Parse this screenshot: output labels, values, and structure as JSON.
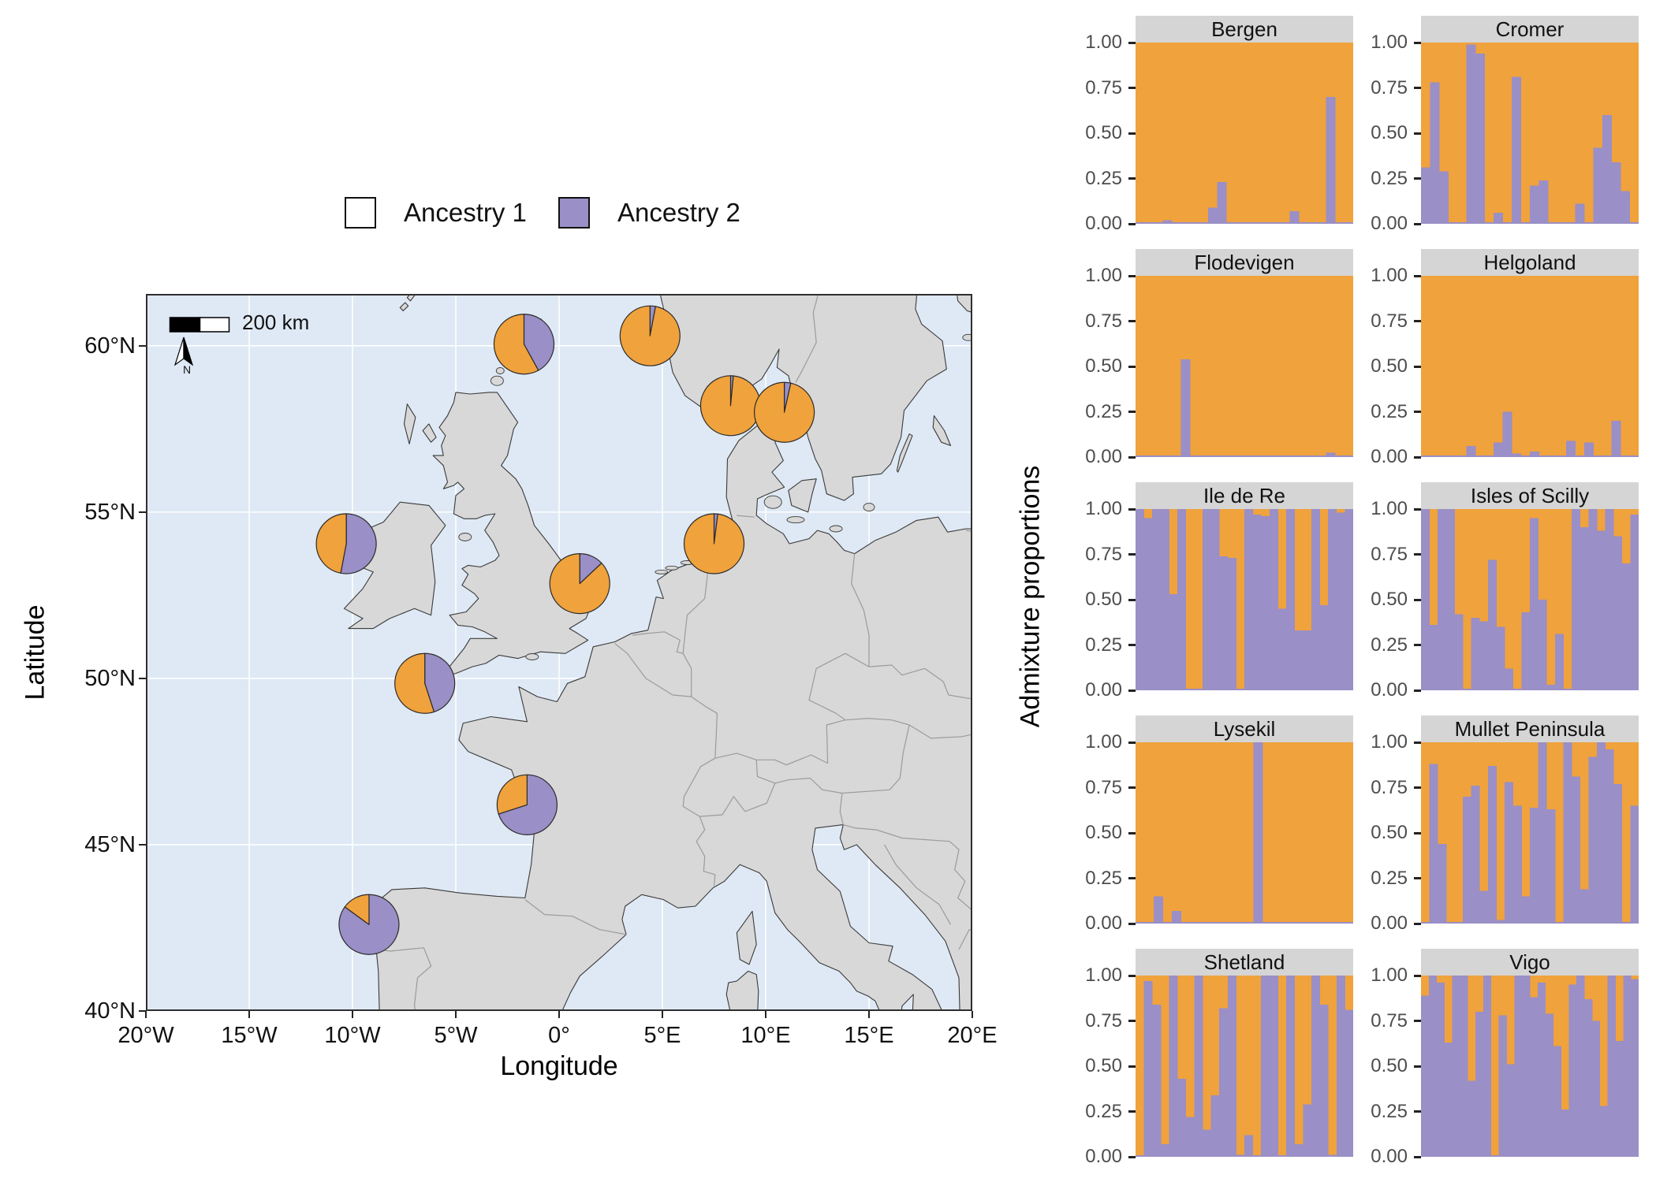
{
  "legend": {
    "items": [
      {
        "label": "Ancestry 1",
        "color": "#F0A23C"
      },
      {
        "label": "Ancestry 2",
        "color": "#9A8FC6"
      }
    ]
  },
  "map": {
    "xlabel": "Longitude",
    "ylabel": "Latitude",
    "scalebar_label": "200 km",
    "north_label": "N",
    "xticks": [
      {
        "label": "20°W",
        "lon": -20
      },
      {
        "label": "15°W",
        "lon": -15
      },
      {
        "label": "10°W",
        "lon": -10
      },
      {
        "label": "5°W",
        "lon": -5
      },
      {
        "label": "0°",
        "lon": 0
      },
      {
        "label": "5°E",
        "lon": 5
      },
      {
        "label": "10°E",
        "lon": 10
      },
      {
        "label": "15°E",
        "lon": 15
      },
      {
        "label": "20°E",
        "lon": 20
      }
    ],
    "yticks": [
      {
        "label": "40°N",
        "lat": 40
      },
      {
        "label": "45°N",
        "lat": 45
      },
      {
        "label": "50°N",
        "lat": 50
      },
      {
        "label": "55°N",
        "lat": 55
      },
      {
        "label": "60°N",
        "lat": 60
      }
    ],
    "colors": {
      "ocean": "#DEE9F5",
      "land": "#D8D8D8",
      "coast": "#3A3A3A",
      "country_border": "#9B9B9B",
      "grid": "#FFFFFF"
    }
  },
  "chart_data": [
    {
      "type": "pie",
      "title": "Admixture proportion pies by sampling site",
      "colors": {
        "ancestry1": "#F0A23C",
        "ancestry2": "#9A8FC6"
      },
      "sites": [
        {
          "name": "Shetland",
          "lon": -1.7,
          "lat": 60.05,
          "ancestry1": 0.58,
          "ancestry2": 0.42
        },
        {
          "name": "Bergen",
          "lon": 4.4,
          "lat": 60.3,
          "ancestry1": 0.97,
          "ancestry2": 0.03
        },
        {
          "name": "Flodevigen",
          "lon": 8.3,
          "lat": 58.2,
          "ancestry1": 0.985,
          "ancestry2": 0.015
        },
        {
          "name": "Lysekil",
          "lon": 10.9,
          "lat": 58.0,
          "ancestry1": 0.965,
          "ancestry2": 0.035
        },
        {
          "name": "Mullet Peninsula",
          "lon": -10.3,
          "lat": 54.05,
          "ancestry1": 0.47,
          "ancestry2": 0.53
        },
        {
          "name": "Helgoland",
          "lon": 7.5,
          "lat": 54.05,
          "ancestry1": 0.98,
          "ancestry2": 0.02
        },
        {
          "name": "Cromer",
          "lon": 1.0,
          "lat": 52.85,
          "ancestry1": 0.87,
          "ancestry2": 0.13
        },
        {
          "name": "Isles of Scilly",
          "lon": -6.5,
          "lat": 49.85,
          "ancestry1": 0.55,
          "ancestry2": 0.45
        },
        {
          "name": "Ile de Re",
          "lon": -1.55,
          "lat": 46.2,
          "ancestry1": 0.3,
          "ancestry2": 0.7
        },
        {
          "name": "Vigo",
          "lon": -9.2,
          "lat": 42.6,
          "ancestry1": 0.15,
          "ancestry2": 0.85
        }
      ]
    },
    {
      "type": "bar",
      "title": "Per-individual admixture proportions by population",
      "ylabel": "Admixture proportions",
      "yticks": [
        "1.00",
        "0.75",
        "0.50",
        "0.25",
        "0.00"
      ],
      "ylim": [
        0,
        1
      ],
      "colors": {
        "ancestry1": "#F0A23C",
        "ancestry2": "#9A8FC6"
      },
      "facets": [
        {
          "name": "Bergen",
          "ancestry2_values": [
            0,
            0,
            0,
            0.02,
            0,
            0,
            0,
            0,
            0.09,
            0.23,
            0,
            0,
            0,
            0,
            0,
            0,
            0,
            0.07,
            0,
            0,
            0,
            0.7,
            0,
            0
          ]
        },
        {
          "name": "Cromer",
          "ancestry2_values": [
            0.31,
            0.78,
            0.29,
            0,
            0,
            0.99,
            0.94,
            0,
            0.06,
            0,
            0.81,
            0,
            0.21,
            0.24,
            0,
            0,
            0,
            0.11,
            0,
            0.42,
            0.6,
            0.34,
            0.18,
            0
          ]
        },
        {
          "name": "Flodevigen",
          "ancestry2_values": [
            0,
            0,
            0,
            0,
            0,
            0.54,
            0,
            0,
            0,
            0,
            0,
            0,
            0,
            0,
            0,
            0,
            0,
            0,
            0,
            0,
            0,
            0.025,
            0,
            0
          ]
        },
        {
          "name": "Helgoland",
          "ancestry2_values": [
            0,
            0,
            0,
            0,
            0,
            0.06,
            0,
            0,
            0.08,
            0.25,
            0.02,
            0,
            0.03,
            0,
            0,
            0,
            0.09,
            0,
            0.08,
            0,
            0,
            0.2,
            0,
            0
          ]
        },
        {
          "name": "Ile de Re",
          "ancestry2_values": [
            1,
            0.95,
            1,
            1,
            0.53,
            1,
            0,
            0,
            1,
            1,
            0.74,
            0.73,
            0,
            1,
            0.97,
            0.96,
            1,
            0.45,
            1,
            0.33,
            0.33,
            1,
            0.47,
            1,
            0.98,
            1
          ]
        },
        {
          "name": "Isles of Scilly",
          "ancestry2_values": [
            1,
            0.36,
            1,
            1,
            0.42,
            0,
            0.4,
            0.38,
            0.72,
            0.35,
            0.12,
            0,
            0.43,
            0.95,
            0.5,
            0.03,
            0.31,
            0,
            1,
            0.9,
            1,
            0.88,
            1,
            0.85,
            0.7,
            0.97
          ]
        },
        {
          "name": "Lysekil",
          "ancestry2_values": [
            0,
            0,
            0.15,
            0,
            0.07,
            0,
            0,
            0,
            0,
            0,
            0,
            0,
            0,
            1,
            0,
            0,
            0,
            0,
            0,
            0,
            0,
            0,
            0,
            0
          ]
        },
        {
          "name": "Mullet Peninsula",
          "ancestry2_values": [
            0,
            0.88,
            0.44,
            0,
            0,
            0.7,
            0.76,
            0.18,
            0.87,
            0.02,
            0.78,
            0.65,
            0.15,
            0.64,
            1,
            0.63,
            0,
            1,
            0.81,
            0.19,
            0.92,
            1,
            0.96,
            0.77,
            0,
            0.65
          ]
        },
        {
          "name": "Shetland",
          "ancestry2_values": [
            0,
            0.97,
            0.84,
            0.07,
            1,
            0.43,
            0.22,
            1,
            0.15,
            0.34,
            0.82,
            1,
            0.01,
            0.12,
            0,
            1,
            1,
            0,
            1,
            0.07,
            0.29,
            1,
            0.84,
            0.01,
            1,
            0.81
          ]
        },
        {
          "name": "Vigo",
          "ancestry2_values": [
            0.89,
            1,
            0.96,
            0.63,
            1,
            1,
            0.42,
            0.8,
            1,
            0,
            0.78,
            0.51,
            1,
            1,
            0.88,
            0.96,
            0.79,
            0.61,
            0.26,
            0.95,
            1,
            0.87,
            0.75,
            0.28,
            1,
            0.64,
            1,
            0.98
          ]
        }
      ]
    }
  ]
}
